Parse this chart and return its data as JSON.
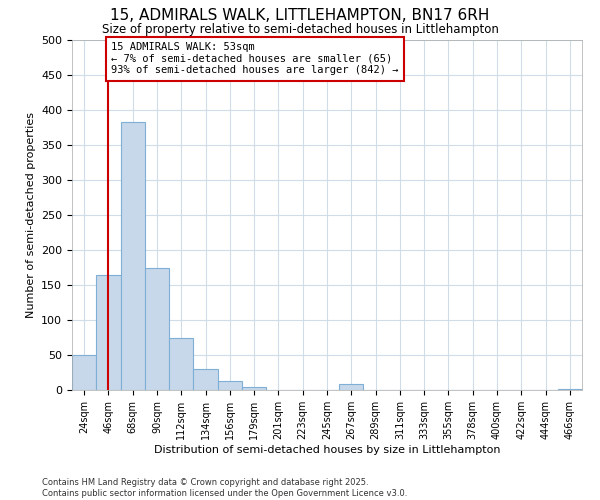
{
  "title": "15, ADMIRALS WALK, LITTLEHAMPTON, BN17 6RH",
  "subtitle": "Size of property relative to semi-detached houses in Littlehampton",
  "xlabel": "Distribution of semi-detached houses by size in Littlehampton",
  "ylabel": "Number of semi-detached properties",
  "footnote1": "Contains HM Land Registry data © Crown copyright and database right 2025.",
  "footnote2": "Contains public sector information licensed under the Open Government Licence v3.0.",
  "annotation_line1": "15 ADMIRALS WALK: 53sqm",
  "annotation_line2": "← 7% of semi-detached houses are smaller (65)",
  "annotation_line3": "93% of semi-detached houses are larger (842) →",
  "bar_color": "#c8d8eb",
  "bar_edge_color": "#7fafd4",
  "vline_color": "#cc0000",
  "annotation_box_color": "#ffffff",
  "annotation_box_edge": "#cc0000",
  "bg_color": "#ffffff",
  "plot_bg_color": "#ffffff",
  "grid_color": "#d0dce8",
  "categories": [
    "24sqm",
    "46sqm",
    "68sqm",
    "90sqm",
    "112sqm",
    "134sqm",
    "156sqm",
    "179sqm",
    "201sqm",
    "223sqm",
    "245sqm",
    "267sqm",
    "289sqm",
    "311sqm",
    "333sqm",
    "355sqm",
    "378sqm",
    "400sqm",
    "422sqm",
    "444sqm",
    "466sqm"
  ],
  "values": [
    50,
    165,
    383,
    175,
    75,
    30,
    13,
    5,
    0,
    0,
    0,
    8,
    0,
    0,
    0,
    0,
    0,
    0,
    0,
    0,
    2
  ],
  "ylim": [
    0,
    500
  ],
  "yticks": [
    0,
    50,
    100,
    150,
    200,
    250,
    300,
    350,
    400,
    450,
    500
  ],
  "vline_x": 1.0
}
